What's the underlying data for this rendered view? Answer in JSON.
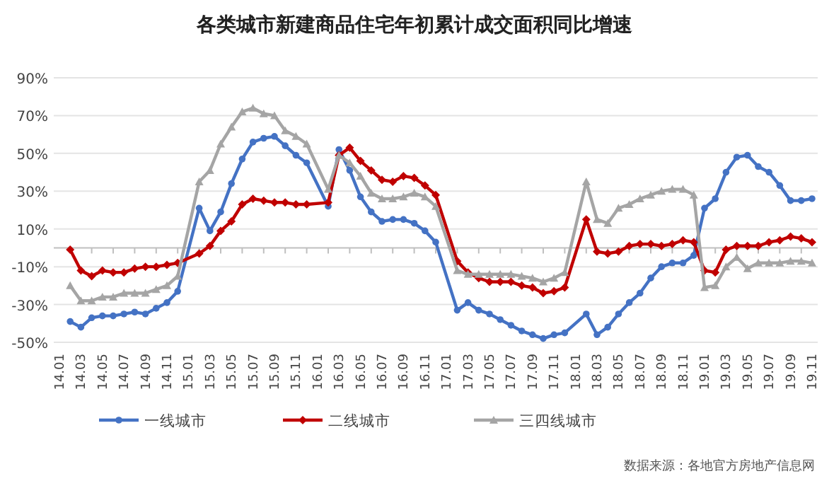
{
  "chart_data": {
    "type": "line",
    "title": "各类城市新建商品住宅年初累计成交面积同比增速",
    "categories": [
      "14.01",
      null,
      "14.03",
      null,
      "14.05",
      null,
      "14.07",
      null,
      "14.09",
      null,
      "14.11",
      null,
      "15.01",
      null,
      "15.03",
      null,
      "15.05",
      null,
      "15.07",
      null,
      "15.09",
      null,
      "15.11",
      null,
      "16.01",
      null,
      "16.03",
      null,
      "16.05",
      null,
      "16.07",
      null,
      "16.09",
      null,
      "16.11",
      null,
      "17.01",
      null,
      "17.03",
      null,
      "17.05",
      null,
      "17.07",
      null,
      "17.09",
      null,
      "17.11",
      null,
      "18.01",
      null,
      "18.03",
      null,
      "18.05",
      null,
      "18.07",
      null,
      "18.09",
      null,
      "18.11",
      null,
      "19.01",
      null,
      "19.03",
      null,
      "19.05",
      null,
      "19.07",
      null,
      "19.09",
      null,
      "19.11"
    ],
    "series": [
      {
        "name": "一线城市",
        "color": "#4472c4",
        "marker": "circle",
        "values": [
          null,
          -39,
          -42,
          -37,
          -36,
          -36,
          -35,
          -34,
          -35,
          -32,
          -29,
          -23,
          null,
          21,
          9,
          19,
          34,
          47,
          56,
          58,
          59,
          54,
          49,
          45,
          null,
          22,
          52,
          41,
          27,
          19,
          14,
          15,
          15,
          13,
          9,
          3,
          null,
          -33,
          -29,
          -33,
          -35,
          -38,
          -41,
          -44,
          -46,
          -48,
          -46,
          -45,
          null,
          -35,
          -46,
          -42,
          -35,
          -29,
          -24,
          -16,
          -10,
          -8,
          -8,
          -4,
          21,
          26,
          40,
          48,
          49,
          43,
          40,
          33,
          25,
          25,
          26
        ]
      },
      {
        "name": "二线城市",
        "color": "#c00000",
        "marker": "diamond",
        "values": [
          null,
          -1,
          -12,
          -15,
          -12,
          -13,
          -13,
          -11,
          -10,
          -10,
          -9,
          -8,
          null,
          -3,
          1,
          9,
          14,
          23,
          26,
          25,
          24,
          24,
          23,
          23,
          null,
          24,
          49,
          53,
          46,
          41,
          36,
          35,
          38,
          37,
          33,
          28,
          null,
          -7,
          -13,
          -16,
          -18,
          -18,
          -18,
          -20,
          -21,
          -24,
          -23,
          -21,
          null,
          15,
          -2,
          -3,
          -2,
          1,
          2,
          2,
          1,
          2,
          4,
          3,
          -12,
          -13,
          -1,
          1,
          1,
          1,
          3,
          4,
          6,
          5,
          3
        ]
      },
      {
        "name": "三四线城市",
        "color": "#a5a5a5",
        "marker": "triangle",
        "values": [
          null,
          -20,
          -28,
          -28,
          -26,
          -26,
          -24,
          -24,
          -24,
          -22,
          -20,
          -15,
          null,
          35,
          41,
          55,
          64,
          72,
          74,
          71,
          70,
          62,
          59,
          55,
          null,
          31,
          49,
          45,
          38,
          29,
          26,
          26,
          27,
          29,
          27,
          22,
          null,
          -12,
          -14,
          -14,
          -14,
          -14,
          -14,
          -15,
          -16,
          -18,
          -16,
          -13,
          null,
          35,
          15,
          13,
          21,
          23,
          26,
          28,
          30,
          31,
          31,
          28,
          -21,
          -20,
          -10,
          -5,
          -11,
          -8,
          -8,
          -8,
          -7,
          -7,
          -8
        ]
      }
    ],
    "ylim": [
      -50,
      90
    ],
    "yticks": [
      {
        "value": -50,
        "label": "-50%"
      },
      {
        "value": -30,
        "label": "-30%"
      },
      {
        "value": -10,
        "label": "-10%"
      },
      {
        "value": 10,
        "label": "10%"
      },
      {
        "value": 30,
        "label": "30%"
      },
      {
        "value": 50,
        "label": "50%"
      },
      {
        "value": 70,
        "label": "70%"
      },
      {
        "value": 90,
        "label": "90%"
      }
    ],
    "grid": "y",
    "legend": "bottom",
    "annotations": [
      "数据来源：各地官方房地产信息网"
    ]
  }
}
